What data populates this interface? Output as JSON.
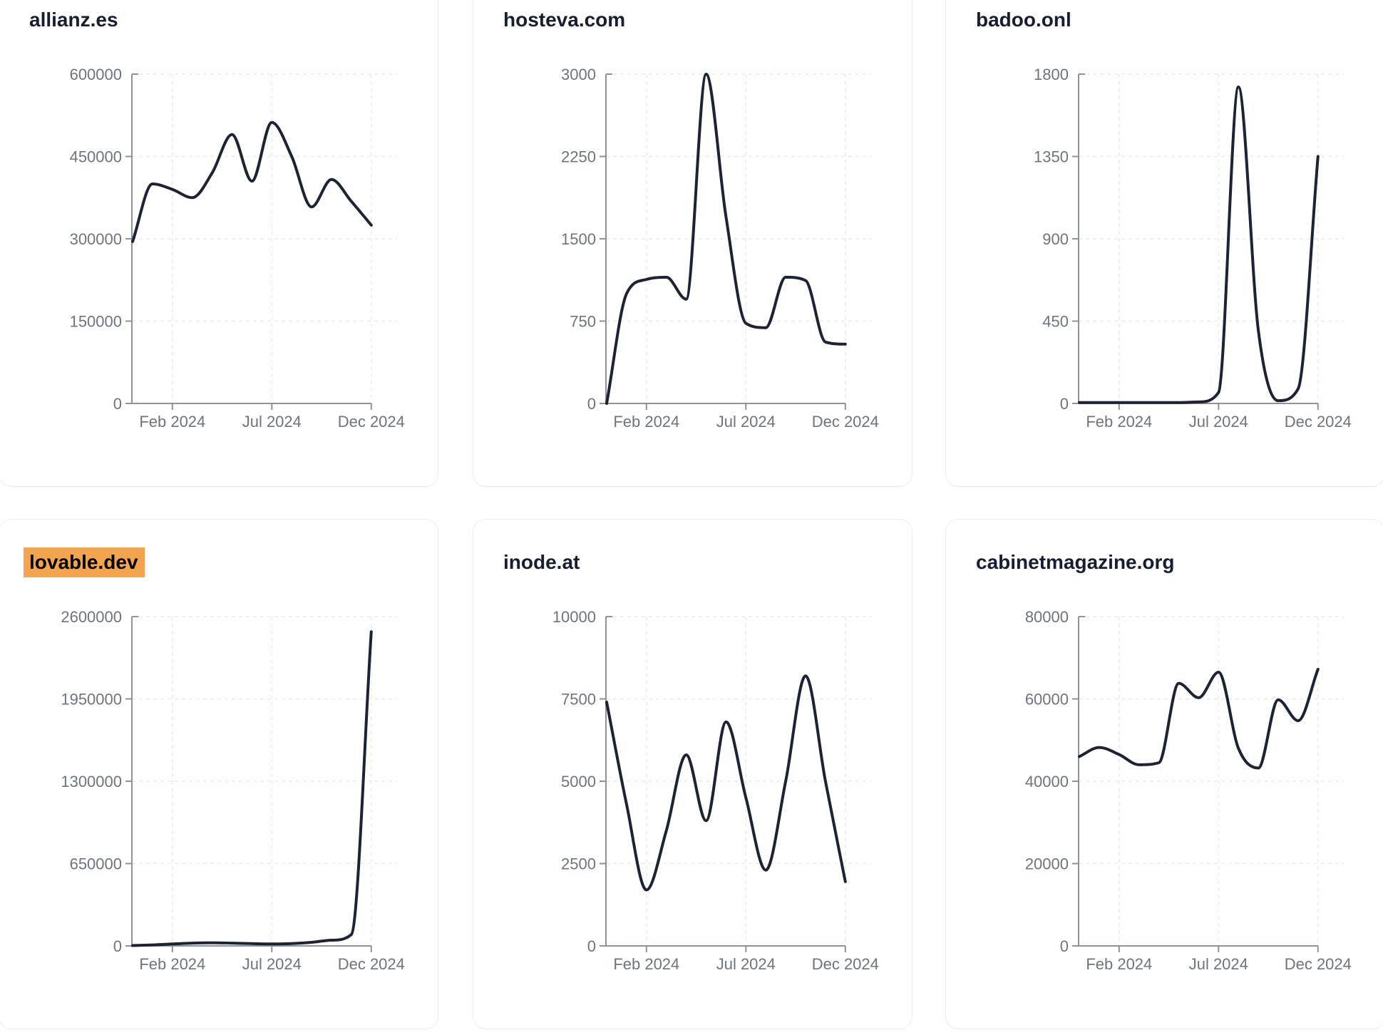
{
  "style": {
    "line_color": "#1b2334",
    "title_color": "#161e33",
    "tick_color": "#6d7480",
    "axis_color": "#8d929b",
    "grid_color": "#e8eaef",
    "card_border_color": "#e9edf4",
    "highlight_color": "#f2a44e",
    "background": "#ffffff"
  },
  "chart_data": [
    {
      "type": "line",
      "title": "allianz.es",
      "highlighted": false,
      "x": [
        "2023-12",
        "2024-01",
        "2024-02",
        "2024-03",
        "2024-04",
        "2024-05",
        "2024-06",
        "2024-07",
        "2024-08",
        "2024-09",
        "2024-10",
        "2024-11",
        "2024-12"
      ],
      "values": [
        295000,
        400000,
        390000,
        375000,
        420000,
        490000,
        405000,
        512000,
        450000,
        358000,
        408000,
        368000,
        325000
      ],
      "x_tick_labels": [
        "Feb 2024",
        "Jul 2024",
        "Dec 2024"
      ],
      "x_tick_indices": [
        2,
        7,
        12
      ],
      "y_ticks": [
        0,
        150000,
        300000,
        450000,
        600000
      ],
      "ylim": [
        0,
        600000
      ],
      "grid": "dashed",
      "legend": "none"
    },
    {
      "type": "line",
      "title": "hosteva.com",
      "highlighted": false,
      "x": [
        "2023-12",
        "2024-01",
        "2024-02",
        "2024-03",
        "2024-04",
        "2024-05",
        "2024-06",
        "2024-07",
        "2024-08",
        "2024-09",
        "2024-10",
        "2024-11",
        "2024-12"
      ],
      "values": [
        0,
        1000,
        1130,
        1150,
        950,
        3000,
        1700,
        730,
        690,
        1150,
        1120,
        560,
        540
      ],
      "x_tick_labels": [
        "Feb 2024",
        "Jul 2024",
        "Dec 2024"
      ],
      "x_tick_indices": [
        2,
        7,
        12
      ],
      "y_ticks": [
        0,
        750,
        1500,
        2250,
        3000
      ],
      "ylim": [
        0,
        3000
      ],
      "grid": "dashed",
      "legend": "none"
    },
    {
      "type": "line",
      "title": "badoo.onl",
      "highlighted": false,
      "x": [
        "2023-12",
        "2024-01",
        "2024-02",
        "2024-03",
        "2024-04",
        "2024-05",
        "2024-06",
        "2024-07",
        "2024-08",
        "2024-09",
        "2024-10",
        "2024-11",
        "2024-12"
      ],
      "values": [
        5,
        5,
        5,
        5,
        5,
        5,
        8,
        60,
        1730,
        400,
        15,
        80,
        1350
      ],
      "x_tick_labels": [
        "Feb 2024",
        "Jul 2024",
        "Dec 2024"
      ],
      "x_tick_indices": [
        2,
        7,
        12
      ],
      "y_ticks": [
        0,
        450,
        900,
        1350,
        1800
      ],
      "ylim": [
        0,
        1800
      ],
      "grid": "dashed",
      "legend": "none"
    },
    {
      "type": "line",
      "title": "lovable.dev",
      "highlighted": true,
      "x": [
        "2023-12",
        "2024-01",
        "2024-02",
        "2024-03",
        "2024-04",
        "2024-05",
        "2024-06",
        "2024-07",
        "2024-08",
        "2024-09",
        "2024-10",
        "2024-11",
        "2024-12"
      ],
      "values": [
        3000,
        8000,
        15000,
        22000,
        25000,
        22000,
        18000,
        15000,
        18000,
        28000,
        45000,
        90000,
        2480000
      ],
      "x_tick_labels": [
        "Feb 2024",
        "Jul 2024",
        "Dec 2024"
      ],
      "x_tick_indices": [
        2,
        7,
        12
      ],
      "y_ticks": [
        0,
        650000,
        1300000,
        1950000,
        2600000
      ],
      "ylim": [
        0,
        2600000
      ],
      "grid": "dashed",
      "legend": "none"
    },
    {
      "type": "line",
      "title": "inode.at",
      "highlighted": false,
      "x": [
        "2023-12",
        "2024-01",
        "2024-02",
        "2024-03",
        "2024-04",
        "2024-05",
        "2024-06",
        "2024-07",
        "2024-08",
        "2024-09",
        "2024-10",
        "2024-11",
        "2024-12"
      ],
      "values": [
        7400,
        4300,
        1700,
        3500,
        5800,
        3800,
        6800,
        4500,
        2300,
        5000,
        8200,
        5000,
        1950
      ],
      "x_tick_labels": [
        "Feb 2024",
        "Jul 2024",
        "Dec 2024"
      ],
      "x_tick_indices": [
        2,
        7,
        12
      ],
      "y_ticks": [
        0,
        2500,
        5000,
        7500,
        10000
      ],
      "ylim": [
        0,
        10000
      ],
      "grid": "dashed",
      "legend": "none"
    },
    {
      "type": "line",
      "title": "cabinetmagazine.org",
      "highlighted": false,
      "x": [
        "2023-12",
        "2024-01",
        "2024-02",
        "2024-03",
        "2024-04",
        "2024-05",
        "2024-06",
        "2024-07",
        "2024-08",
        "2024-09",
        "2024-10",
        "2024-11",
        "2024-12"
      ],
      "values": [
        46000,
        48200,
        46500,
        44000,
        44500,
        63800,
        60300,
        66500,
        48000,
        43200,
        59800,
        54700,
        67200
      ],
      "x_tick_labels": [
        "Feb 2024",
        "Jul 2024",
        "Dec 2024"
      ],
      "x_tick_indices": [
        2,
        7,
        12
      ],
      "y_ticks": [
        0,
        20000,
        40000,
        60000,
        80000
      ],
      "ylim": [
        0,
        80000
      ],
      "grid": "dashed",
      "legend": "none"
    }
  ]
}
